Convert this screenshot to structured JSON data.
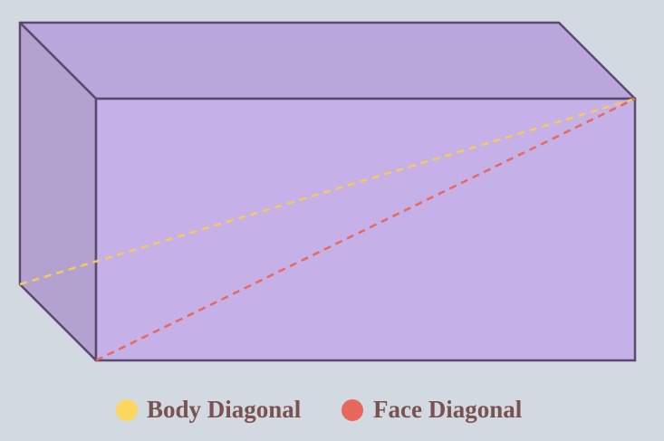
{
  "legend": {
    "items": [
      {
        "label": "Body Diagonal"
      },
      {
        "label": "Face Diagonal"
      }
    ]
  }
}
